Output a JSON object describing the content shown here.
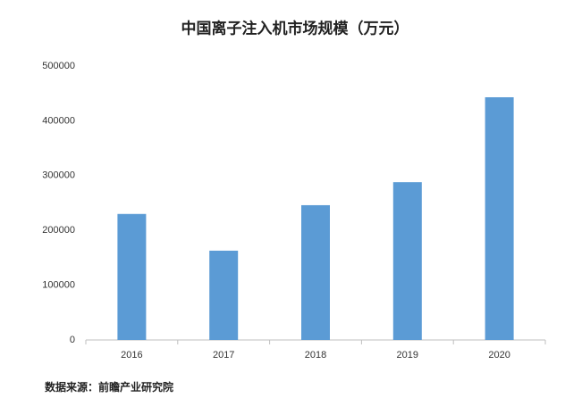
{
  "chart_data": {
    "type": "bar",
    "title": "中国离子注入机市场规模（万元）",
    "categories": [
      "2016",
      "2017",
      "2018",
      "2019",
      "2020"
    ],
    "values": [
      230000,
      163000,
      246000,
      288000,
      443000
    ],
    "color": "#5b9bd5",
    "ylim": [
      0,
      500000
    ],
    "yticks": [
      0,
      100000,
      200000,
      300000,
      400000,
      500000
    ],
    "grid": false,
    "source": "数据来源：前瞻产业研究院"
  }
}
